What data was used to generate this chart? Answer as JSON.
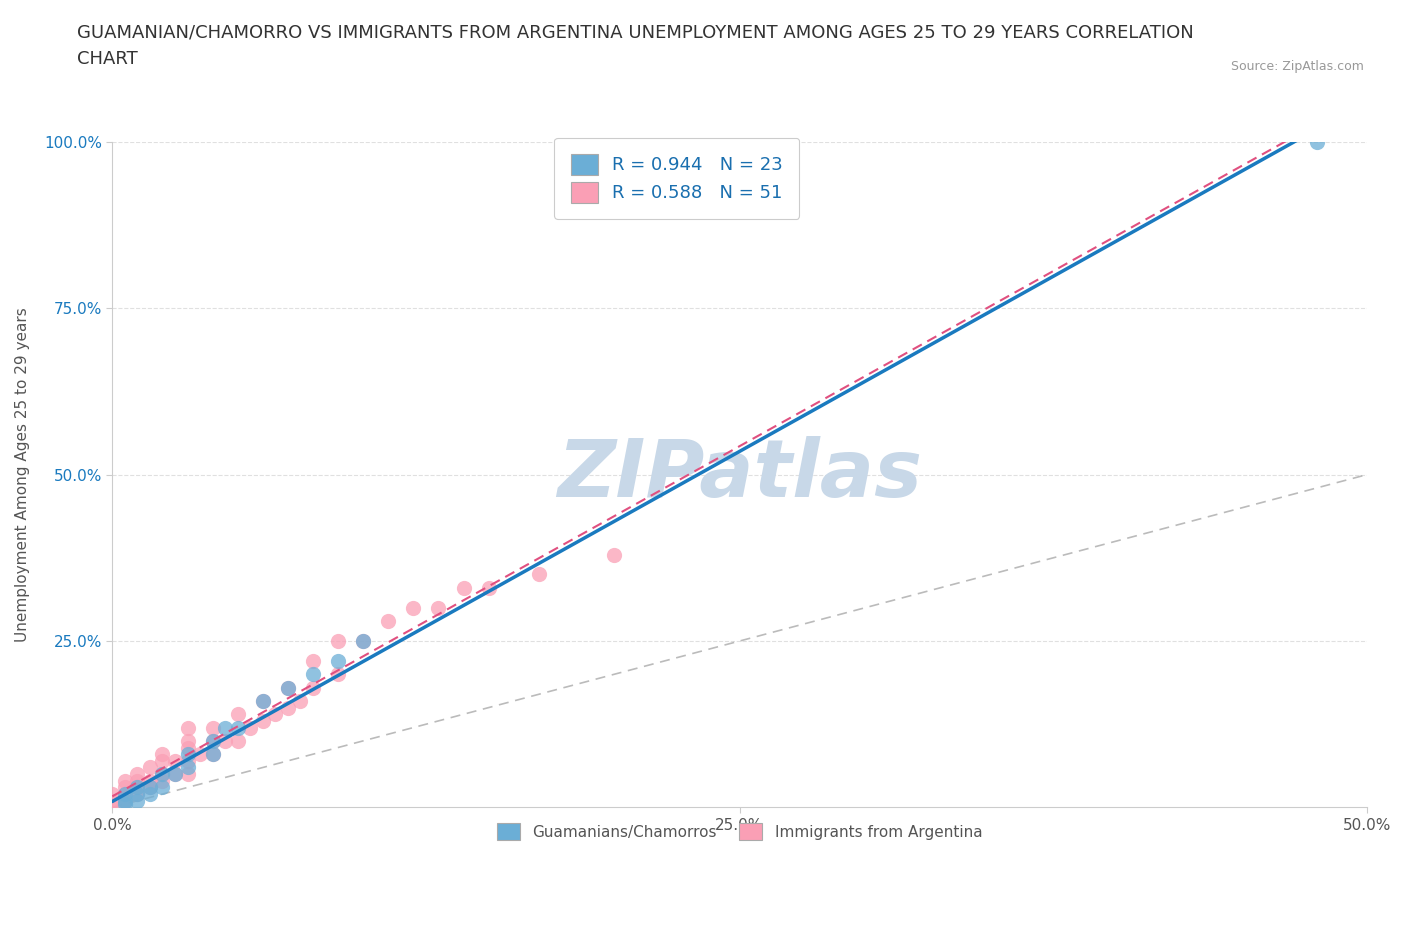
{
  "title": "GUAMANIAN/CHAMORRO VS IMMIGRANTS FROM ARGENTINA UNEMPLOYMENT AMONG AGES 25 TO 29 YEARS CORRELATION\nCHART",
  "source": "Source: ZipAtlas.com",
  "ylabel": "Unemployment Among Ages 25 to 29 years",
  "xlim": [
    0.0,
    0.5
  ],
  "ylim": [
    0.0,
    1.0
  ],
  "xtick_labels": [
    "0.0%",
    "25.0%",
    "50.0%"
  ],
  "xtick_vals": [
    0.0,
    0.25,
    0.5
  ],
  "ytick_labels": [
    "25.0%",
    "50.0%",
    "75.0%",
    "100.0%"
  ],
  "ytick_vals": [
    0.25,
    0.5,
    0.75,
    1.0
  ],
  "guamanian_color": "#6baed6",
  "argentina_color": "#fa9fb5",
  "guamanian_R": 0.944,
  "guamanian_N": 23,
  "argentina_R": 0.588,
  "argentina_N": 51,
  "legend_R_color": "#1a6faf",
  "watermark": "ZIPatlas",
  "watermark_color": "#c8d8e8",
  "background_color": "#ffffff",
  "grid_color": "#e0e0e0",
  "title_fontsize": 13,
  "axis_label_fontsize": 11,
  "tick_fontsize": 11,
  "guamanian_x": [
    0.005,
    0.005,
    0.005,
    0.01,
    0.01,
    0.01,
    0.015,
    0.015,
    0.02,
    0.02,
    0.025,
    0.03,
    0.03,
    0.04,
    0.04,
    0.045,
    0.05,
    0.06,
    0.07,
    0.08,
    0.09,
    0.1,
    0.48
  ],
  "guamanian_y": [
    0.005,
    0.01,
    0.02,
    0.01,
    0.02,
    0.03,
    0.02,
    0.03,
    0.03,
    0.05,
    0.05,
    0.06,
    0.08,
    0.08,
    0.1,
    0.12,
    0.12,
    0.16,
    0.18,
    0.2,
    0.22,
    0.25,
    1.0
  ],
  "argentina_x": [
    0.0,
    0.0,
    0.0,
    0.005,
    0.005,
    0.005,
    0.005,
    0.01,
    0.01,
    0.01,
    0.01,
    0.015,
    0.015,
    0.015,
    0.02,
    0.02,
    0.02,
    0.02,
    0.025,
    0.025,
    0.03,
    0.03,
    0.03,
    0.03,
    0.03,
    0.035,
    0.04,
    0.04,
    0.04,
    0.045,
    0.05,
    0.05,
    0.055,
    0.06,
    0.06,
    0.065,
    0.07,
    0.07,
    0.075,
    0.08,
    0.08,
    0.09,
    0.09,
    0.1,
    0.11,
    0.12,
    0.13,
    0.14,
    0.15,
    0.17,
    0.2
  ],
  "argentina_y": [
    0.0,
    0.01,
    0.02,
    0.01,
    0.02,
    0.03,
    0.04,
    0.02,
    0.03,
    0.04,
    0.05,
    0.03,
    0.04,
    0.06,
    0.04,
    0.05,
    0.07,
    0.08,
    0.05,
    0.07,
    0.05,
    0.07,
    0.09,
    0.1,
    0.12,
    0.08,
    0.08,
    0.1,
    0.12,
    0.1,
    0.1,
    0.14,
    0.12,
    0.13,
    0.16,
    0.14,
    0.15,
    0.18,
    0.16,
    0.18,
    0.22,
    0.2,
    0.25,
    0.25,
    0.28,
    0.3,
    0.3,
    0.33,
    0.33,
    0.35,
    0.38
  ]
}
